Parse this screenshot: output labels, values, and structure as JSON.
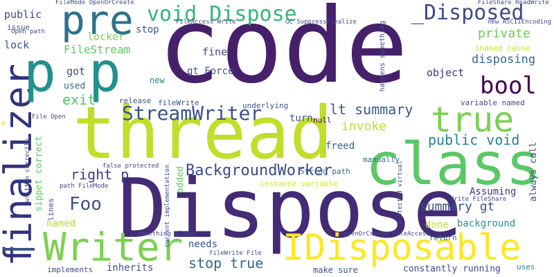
{
  "words": {
    "code": "code",
    "thread": "thread",
    "dispose": "Dispose",
    "class": "class",
    "finalizer": "finalizer",
    "writer": "Writer",
    "idisposable": "IDisposable",
    "pp": "p p",
    "pre": "pre",
    "void_dispose": "void Dispose",
    "underscore_disposed": "_Disposed",
    "true_big": "true",
    "streamwriter": "StreamWriter",
    "lt_summary": "lt summary",
    "bool": "bool",
    "backgroundworker": "BackgroundWorker",
    "foo": "Foo",
    "right_p": "right p",
    "public_void": "public void",
    "summary_gt": "summary gt",
    "stop_true": "stop true",
    "filestream": "FileStream",
    "private": "private",
    "disposing": "disposing",
    "exit": "exit",
    "invoke": "invoke",
    "public": "public",
    "issue": "issue",
    "lock": "lock",
    "locker": "locker",
    "stop": "stop",
    "fine": "fine",
    "got": "got",
    "used": "used",
    "object": "object",
    "new": "new",
    "gt_force": "gt Force",
    "release": "release",
    "filewrite": "fileWrite",
    "underlying": "underlying",
    "null": "null",
    "turn": "turn",
    "freed": "freed",
    "manually": "manually",
    "string_path": "String path",
    "instance_variable": "instance variable",
    "added": "added",
    "always_call": "always call",
    "variable_named": "variable named",
    "assuming": "Assuming",
    "background": "background",
    "done": "done",
    "return": "return",
    "inherits": "inherits",
    "needs": "needs",
    "named": "named",
    "implements": "implements",
    "make_sure": "make sure",
    "constantly_running": "constantly running",
    "uses": "uses",
    "indeed_cause": "indeed cause",
    "happens_something": "happens something",
    "filemode_openorcreate": "FileMode OpenOrCreate",
    "fileshare_readwrite": "FileShare ReadWrite",
    "fileaccess_write": "FileAccess Write",
    "gc_suppressfinalize": "GC SuppressFinalize",
    "new_asciiencoding": "new ASCIIEncoding",
    "open_path": "Open path",
    "file_open": "File Open",
    "false_protected": "false protected",
    "path_filemode": "path FileMode",
    "current_implementation": "current implementation",
    "something_along": "something along",
    "filewrite_file": "fileWrite File",
    "openorcreate_fileaccess": "OpenOrCreate FileAccess",
    "write_fileshare": "Write FileShare",
    "protected_virtual": "protected virtual",
    "sippet_correct": "sippet correct",
    "written_correctly": "written correctly",
    "lines": "lines",
    "e": "e"
  }
}
